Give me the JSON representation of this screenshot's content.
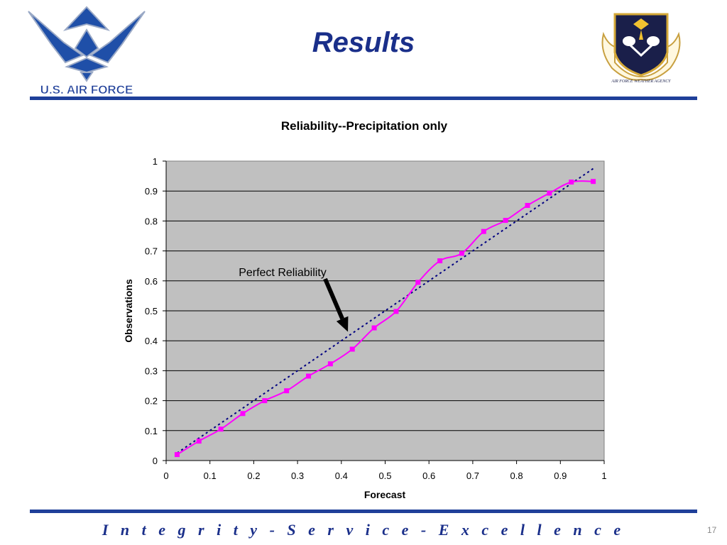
{
  "slide": {
    "title": "Results",
    "left_logo_text": "U.S. AIR FORCE",
    "right_logo_text": "AIR FORCE WEATHER AGENCY",
    "footer": "Integrity - Service - Excellence",
    "page_number": "17"
  },
  "colors": {
    "brand_blue": "#1f3f99",
    "plot_background": "#c0c0c0",
    "series_line": "#ff00ff",
    "reference_line": "#000080"
  },
  "chart_data": {
    "type": "line",
    "title": "Reliability--Precipitation only",
    "xlabel": "Forecast",
    "ylabel": "Observations",
    "xlim": [
      0,
      1
    ],
    "ylim": [
      0,
      1
    ],
    "x_ticks": [
      "0",
      "0.1",
      "0.2",
      "0.3",
      "0.4",
      "0.5",
      "0.6",
      "0.7",
      "0.8",
      "0.9",
      "1"
    ],
    "y_ticks": [
      "0",
      "0.1",
      "0.2",
      "0.3",
      "0.4",
      "0.5",
      "0.6",
      "0.7",
      "0.8",
      "0.9",
      "1"
    ],
    "grid": "horizontal",
    "series": [
      {
        "x": [
          0.025,
          0.075,
          0.125,
          0.175,
          0.225,
          0.275,
          0.325,
          0.375,
          0.425,
          0.475,
          0.525,
          0.575,
          0.625,
          0.675,
          0.725,
          0.775,
          0.825,
          0.875,
          0.925,
          0.975
        ],
        "y": [
          0.02,
          0.065,
          0.105,
          0.157,
          0.2,
          0.233,
          0.282,
          0.323,
          0.372,
          0.443,
          0.498,
          0.595,
          0.667,
          0.692,
          0.765,
          0.802,
          0.852,
          0.893,
          0.93,
          0.932
        ]
      },
      {
        "x": [
          0.025,
          0.975
        ],
        "y": [
          0.025,
          0.975
        ],
        "style": "dotted"
      }
    ],
    "annotation": {
      "text": "Perfect Reliability",
      "points_to": [
        0.415,
        0.43
      ]
    }
  }
}
